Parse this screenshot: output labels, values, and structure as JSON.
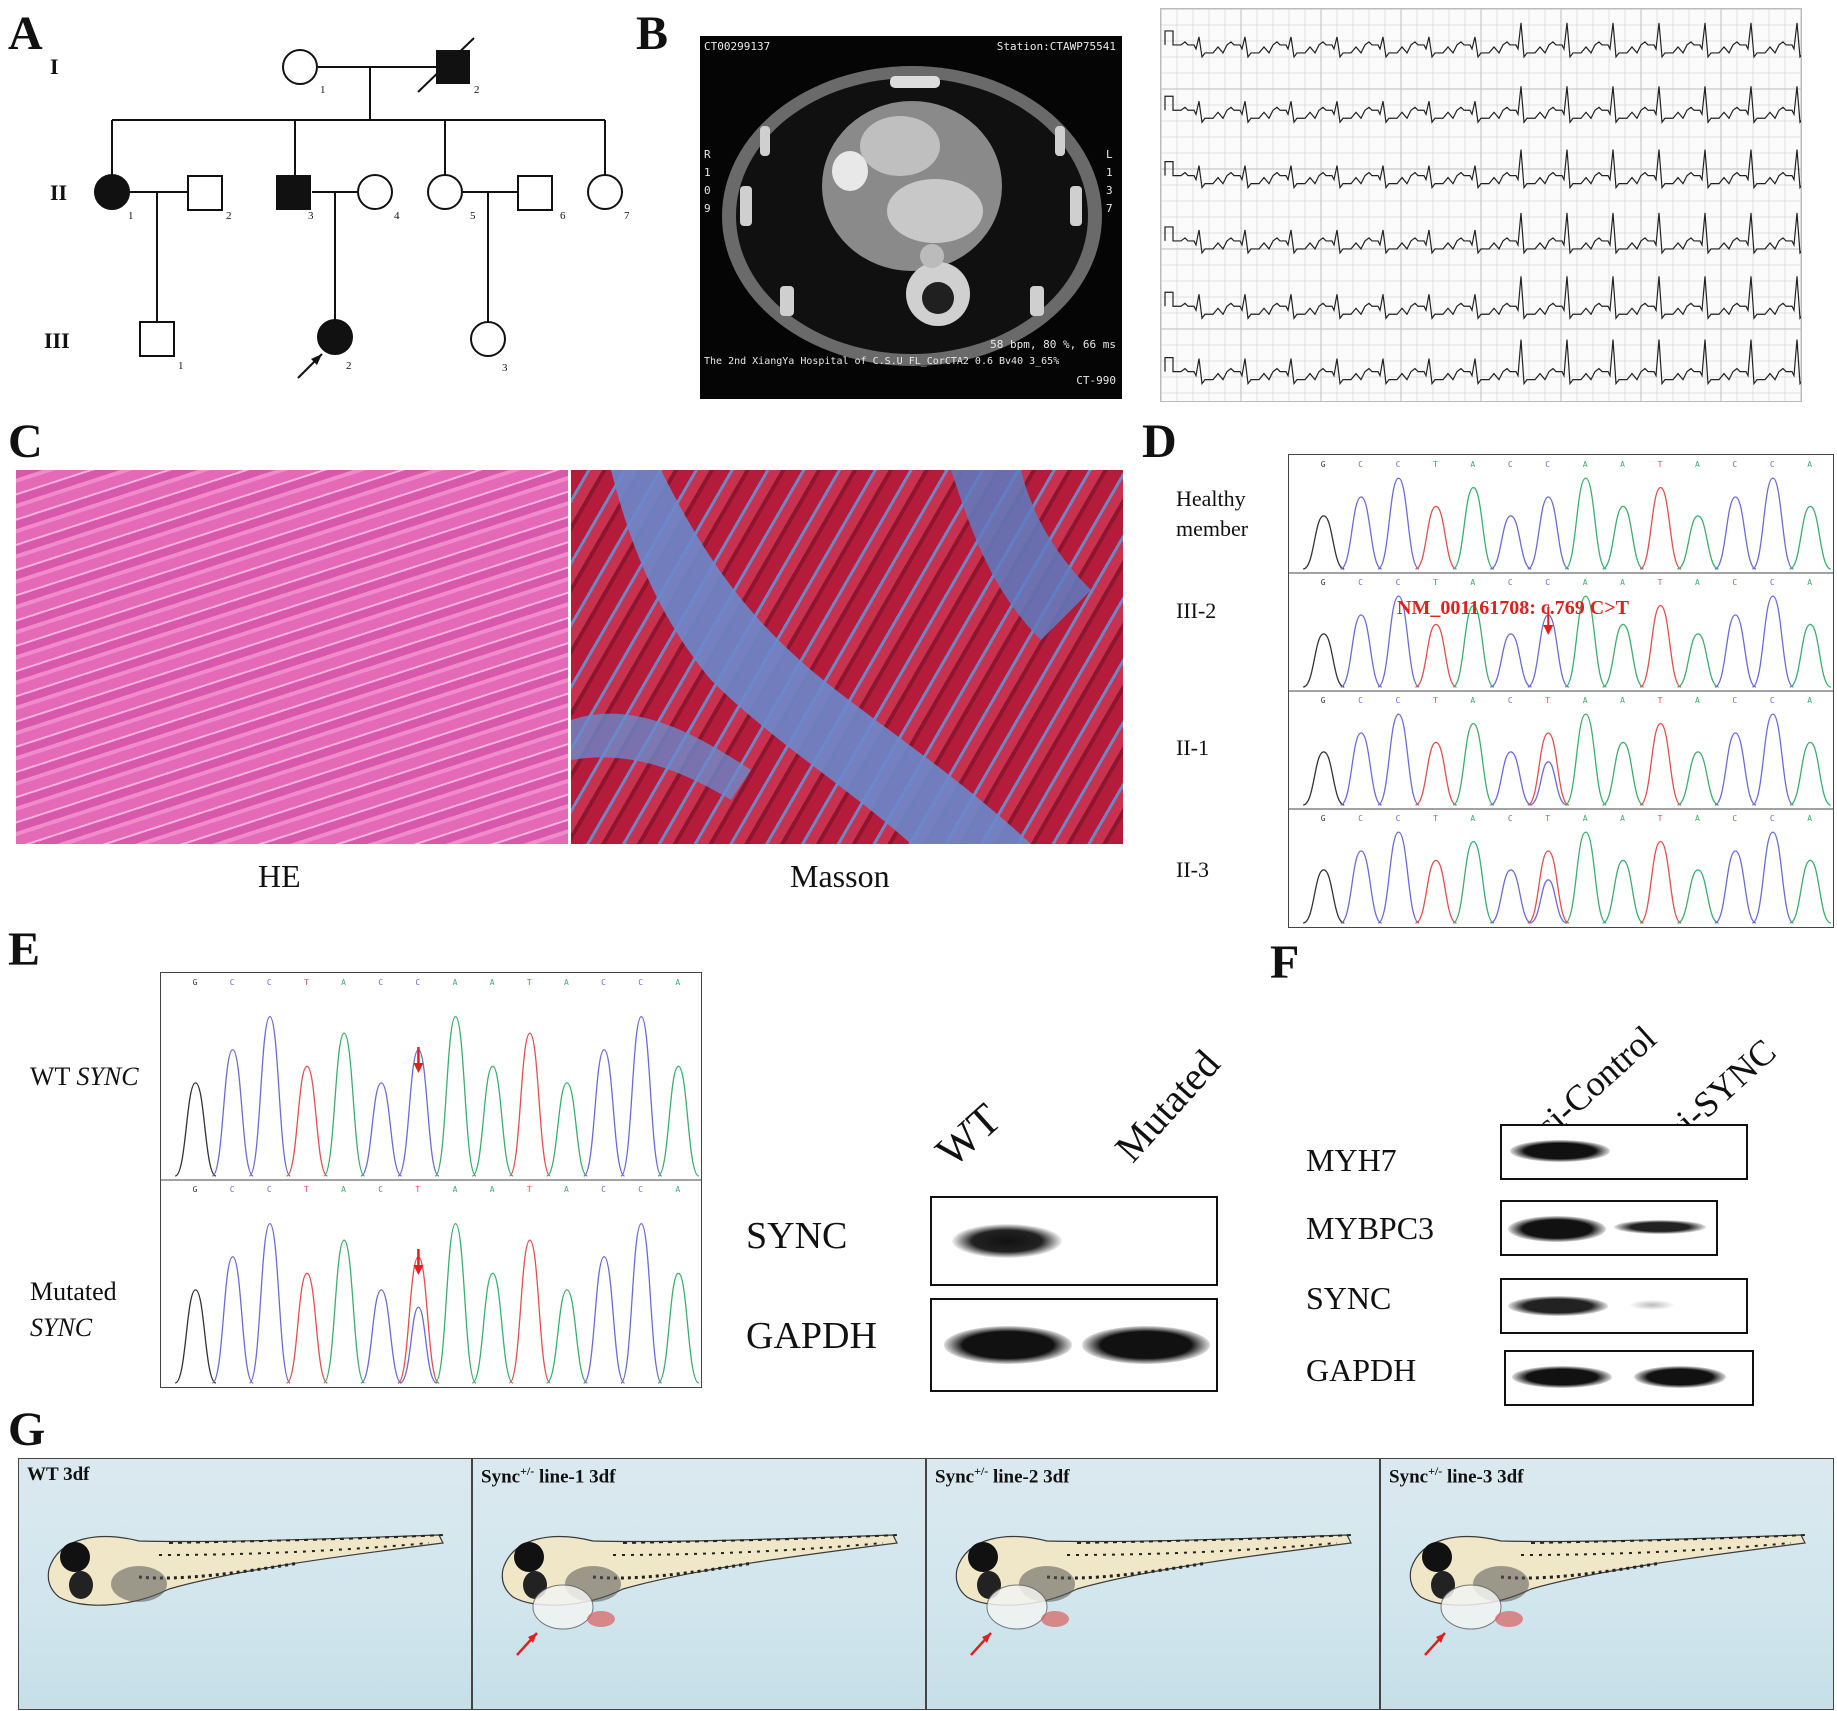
{
  "panels": {
    "A": "A",
    "B": "B",
    "C": "C",
    "D": "D",
    "E": "E",
    "F": "F",
    "G": "G"
  },
  "pedigree": {
    "generations": [
      "I",
      "II",
      "III"
    ],
    "numbers": {
      "I_1": "1",
      "I_2": "2",
      "II_1": "1",
      "II_2": "2",
      "II_3": "3",
      "II_4": "4",
      "II_5": "5",
      "II_6": "6",
      "II_7": "7",
      "III_1": "1",
      "III_2": "2",
      "III_3": "3"
    }
  },
  "ct": {
    "top_left": "CT00299137",
    "top_right": "Station:CTAWP75541",
    "left_col": [
      "R",
      "1",
      "0",
      "9"
    ],
    "right_col": [
      "L",
      "1",
      "3",
      "7"
    ],
    "bottom_right_1": "58 bpm, 80 %, 66 ms",
    "bottom_left": "The 2nd XiangYa Hospital of C.S.U   FL_CorCTA2  0.6  Bv40  3_65%",
    "bottom_right_2": "CT-990"
  },
  "histology": {
    "he_caption": "HE",
    "masson_caption": "Masson"
  },
  "chromatogram_D": {
    "rows": [
      {
        "label_1": "Healthy",
        "label_2": "member",
        "bases": "GCCTACCAATACCA"
      },
      {
        "label_1": "III-2",
        "label_2": "",
        "bases": "GCCTACCAATACCA"
      },
      {
        "label_1": "II-1",
        "label_2": "",
        "bases": "GCCTACTAATACCA"
      },
      {
        "label_1": "II-3",
        "label_2": "",
        "bases": "GCCTACTAATACCA"
      }
    ],
    "mutation_label": "NM_001161708: c.769 C>T"
  },
  "chromatogram_E": {
    "wt_label": "WT",
    "wt_gene": "SYNC",
    "mut_label": "Mutated",
    "mut_gene": "SYNC",
    "bases_wt": "GCCTACCAATACCA",
    "bases_mut": "GCCTACTAATACCA"
  },
  "western_E": {
    "columns": [
      "WT",
      "Mutated"
    ],
    "rows": [
      "SYNC",
      "GAPDH"
    ]
  },
  "western_F": {
    "columns": [
      "si-Control",
      "si-SYNC"
    ],
    "rows": [
      "MYH7",
      "MYBPC3",
      "SYNC",
      "GAPDH"
    ]
  },
  "zebrafish": {
    "panels": [
      {
        "prefix": "WT 3df",
        "sup": "",
        "suffix": ""
      },
      {
        "prefix": "Sync",
        "sup": "+/-",
        "suffix": " line-1   3df"
      },
      {
        "prefix": "Sync",
        "sup": "+/-",
        "suffix": " line-2   3df"
      },
      {
        "prefix": "Sync",
        "sup": "+/-",
        "suffix": " line-3   3df"
      }
    ]
  },
  "colors": {
    "trace_A": "#3cae6e",
    "trace_C": "#6b6bd6",
    "trace_G": "#333333",
    "trace_T": "#e05050",
    "arrow_red": "#e02020",
    "he_pink": "#e064b4",
    "masson_red": "#b0203a",
    "masson_blue": "#5a78c0"
  }
}
